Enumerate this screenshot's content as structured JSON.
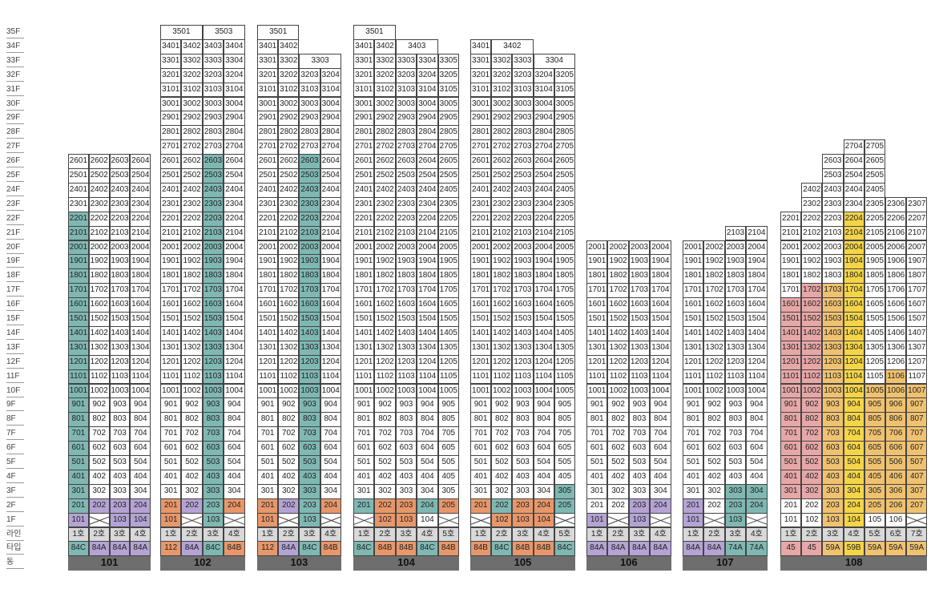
{
  "labels": {
    "line": "라인",
    "type": "타입",
    "building": "동"
  },
  "colors": {
    "teal": "#7fb8b3",
    "purple": "#b4a3d4",
    "orange": "#e8976a",
    "tan": "#f0c270",
    "yellow": "#f5d547",
    "pink": "#e7a7a7",
    "gray": "#d9d9d9",
    "white": "#ffffff"
  },
  "buildings": [
    {
      "name": "101",
      "lines": 4,
      "top": 26,
      "lowMax": 4,
      "line_labels": [
        "1호",
        "2호",
        "3호",
        "4호"
      ],
      "types": [
        "84C",
        "84A",
        "84A",
        "84A"
      ],
      "type_colors": [
        "teal",
        "purple",
        "purple",
        "purple"
      ],
      "tops": [],
      "f2": [
        [
          "201",
          "teal"
        ],
        [
          "202",
          "purple"
        ],
        [
          "203",
          "purple"
        ],
        [
          "204",
          "purple"
        ]
      ],
      "f1": [
        [
          "101",
          "purple"
        ],
        [
          "X",
          "white"
        ],
        [
          "103",
          "purple"
        ],
        [
          "104",
          "purple"
        ]
      ],
      "f3": [
        [
          "301",
          "teal"
        ],
        [
          "302",
          "white"
        ],
        [
          "303",
          "white"
        ],
        [
          "304",
          "white"
        ]
      ],
      "col": [
        0
      ],
      "colFrom": 3,
      "colTo": 26,
      "colLow": [
        0
      ],
      "colLowFrom": 3,
      "colLowTo": 22
    },
    {
      "name": "102",
      "lines": 4,
      "top": 35,
      "line_labels": [
        "1호",
        "2호",
        "3호",
        "4호"
      ],
      "types": [
        "112",
        "84A",
        "84C",
        "84B"
      ],
      "type_colors": [
        "orange",
        "purple",
        "teal",
        "orange"
      ],
      "tops": [
        {
          "f": 35,
          "cells": [
            [
              "3501",
              2
            ],
            [
              "3503",
              2
            ]
          ]
        }
      ],
      "f2": [
        [
          "201",
          "orange"
        ],
        [
          "202",
          "purple"
        ],
        [
          "203",
          "teal"
        ],
        [
          "204",
          "orange"
        ]
      ],
      "f1": [
        [
          "101",
          "orange"
        ],
        [
          "X",
          "white"
        ],
        [
          "103",
          "teal"
        ],
        [
          "X",
          "white"
        ]
      ],
      "col": [
        2
      ],
      "colFrom": 3,
      "colTo": 26
    },
    {
      "name": "103",
      "lines": 4,
      "top": 35,
      "line_labels": [
        "1호",
        "2호",
        "3호",
        "4호"
      ],
      "types": [
        "112",
        "84A",
        "84C",
        "84B"
      ],
      "type_colors": [
        "orange",
        "purple",
        "teal",
        "orange"
      ],
      "tops": [
        {
          "f": 35,
          "cells": [
            [
              "3501",
              2
            ]
          ]
        },
        {
          "f": 34,
          "cells": [
            [
              "3401",
              1
            ],
            [
              "3402",
              1
            ]
          ]
        },
        {
          "f": 33,
          "cells": [
            [
              "3301",
              1
            ],
            [
              "3302",
              1
            ],
            [
              "3303",
              2
            ]
          ]
        }
      ],
      "f2": [
        [
          "201",
          "orange"
        ],
        [
          "202",
          "purple"
        ],
        [
          "203",
          "teal"
        ],
        [
          "204",
          "orange"
        ]
      ],
      "f1": [
        [
          "101",
          "orange"
        ],
        [
          "X",
          "white"
        ],
        [
          "103",
          "teal"
        ],
        [
          "X",
          "white"
        ]
      ],
      "col": [
        2
      ],
      "colFrom": 3,
      "colTo": 26
    },
    {
      "name": "104",
      "lines": 5,
      "top": 35,
      "line_labels": [
        "1호",
        "2호",
        "3호",
        "4호",
        "5호"
      ],
      "types": [
        "84C",
        "84B",
        "84B",
        "84C",
        "84B"
      ],
      "type_colors": [
        "teal",
        "orange",
        "orange",
        "teal",
        "orange"
      ],
      "tops": [
        {
          "f": 35,
          "cells": [
            [
              "3501",
              2
            ]
          ]
        },
        {
          "f": 34,
          "cells": [
            [
              "3401",
              1
            ],
            [
              "3402",
              1
            ],
            [
              "3403",
              2
            ]
          ]
        }
      ],
      "f2": [
        [
          "201",
          "teal"
        ],
        [
          "202",
          "orange"
        ],
        [
          "203",
          "orange"
        ],
        [
          "204",
          "teal"
        ],
        [
          "205",
          "orange"
        ]
      ],
      "f1": [
        [
          "X",
          "white"
        ],
        [
          "102",
          "orange"
        ],
        [
          "103",
          "orange"
        ],
        [
          "104",
          "white"
        ],
        [
          "X",
          "white"
        ]
      ],
      "col": [],
      "colFrom": 0,
      "colTo": 0
    },
    {
      "name": "105",
      "lines": 5,
      "top": 34,
      "line_labels": [
        "1호",
        "2호",
        "3호",
        "4호",
        "5호"
      ],
      "types": [
        "84B",
        "84C",
        "84B",
        "84B",
        "84C"
      ],
      "type_colors": [
        "orange",
        "teal",
        "orange",
        "orange",
        "teal"
      ],
      "tops": [
        {
          "f": 34,
          "cells": [
            [
              "3401",
              1
            ],
            [
              "3402",
              2
            ]
          ]
        },
        {
          "f": 33,
          "cells": [
            [
              "3301",
              1
            ],
            [
              "3302",
              1
            ],
            [
              "3303",
              1
            ],
            [
              "3304",
              2
            ]
          ]
        }
      ],
      "f2": [
        [
          "201",
          "orange"
        ],
        [
          "202",
          "teal"
        ],
        [
          "203",
          "orange"
        ],
        [
          "204",
          "orange"
        ],
        [
          "205",
          "teal"
        ]
      ],
      "f1": [
        [
          "X",
          "white"
        ],
        [
          "102",
          "orange"
        ],
        [
          "103",
          "orange"
        ],
        [
          "104",
          "orange"
        ],
        [
          "X",
          "white"
        ]
      ],
      "f3": [
        [
          "301",
          "white"
        ],
        [
          "302",
          "white"
        ],
        [
          "303",
          "white"
        ],
        [
          "304",
          "white"
        ],
        [
          "305",
          "teal"
        ]
      ],
      "col": [],
      "colFrom": 0,
      "colTo": 0
    },
    {
      "name": "106",
      "lines": 4,
      "top": 20,
      "line_labels": [
        "1호",
        "2호",
        "3호",
        "4호"
      ],
      "types": [
        "84A",
        "84A",
        "84A",
        "84A"
      ],
      "type_colors": [
        "purple",
        "purple",
        "purple",
        "purple"
      ],
      "tops": [],
      "f2": [
        [
          "201",
          "white"
        ],
        [
          "202",
          "white"
        ],
        [
          "203",
          "purple"
        ],
        [
          "204",
          "purple"
        ]
      ],
      "f1": [
        [
          "101",
          "purple"
        ],
        [
          "X",
          "white"
        ],
        [
          "103",
          "purple"
        ],
        [
          "X",
          "white"
        ]
      ],
      "col": [],
      "colFrom": 0,
      "colTo": 0
    },
    {
      "name": "107",
      "lines": 4,
      "top": 21,
      "line_labels": [
        "1호",
        "2호",
        "3호",
        "4호"
      ],
      "types": [
        "84A",
        "84A",
        "74A",
        "74A"
      ],
      "type_colors": [
        "purple",
        "purple",
        "teal",
        "teal"
      ],
      "tops": [
        {
          "f": 21,
          "cells": [
            [
              "",
              2
            ],
            [
              "2103",
              1
            ],
            [
              "2104",
              1
            ]
          ]
        }
      ],
      "f2": [
        [
          "201",
          "purple"
        ],
        [
          "202",
          "white"
        ],
        [
          "203",
          "teal"
        ],
        [
          "204",
          "teal"
        ]
      ],
      "f1": [
        [
          "101",
          "purple"
        ],
        [
          "X",
          "white"
        ],
        [
          "103",
          "teal"
        ],
        [
          "X",
          "white"
        ]
      ],
      "f3": [
        [
          "301",
          "white"
        ],
        [
          "302",
          "white"
        ],
        [
          "303",
          "teal"
        ],
        [
          "304",
          "teal"
        ]
      ],
      "col": [],
      "colFrom": 0,
      "colTo": 0
    },
    {
      "name": "108",
      "lines": 7,
      "top": 27,
      "line_labels": [
        "1호",
        "2호",
        "3호",
        "4호",
        "5호",
        "6호",
        "7호"
      ],
      "types": [
        "45",
        "45",
        "59A",
        "59B",
        "59A",
        "59A",
        "59A"
      ],
      "type_colors": [
        "pink",
        "pink",
        "tan",
        "yellow",
        "tan",
        "tan",
        "tan"
      ],
      "tops": [
        {
          "f": 27,
          "cells": [
            [
              "",
              3
            ],
            [
              "2704",
              1
            ],
            [
              "2705",
              1
            ],
            [
              "",
              2
            ]
          ]
        },
        {
          "f": 26,
          "cells": [
            [
              "",
              2
            ],
            [
              "2603",
              1
            ],
            [
              "2604",
              1
            ],
            [
              "2605",
              1
            ],
            [
              "",
              2
            ]
          ]
        },
        {
          "f": 25,
          "cells": [
            [
              "",
              2
            ],
            [
              "2503",
              1
            ],
            [
              "2504",
              1
            ],
            [
              "2505",
              1
            ],
            [
              "",
              2
            ]
          ]
        },
        {
          "f": 24,
          "cells": [
            [
              "",
              1
            ],
            [
              "2402",
              1
            ],
            [
              "2403",
              1
            ],
            [
              "2404",
              1
            ],
            [
              "2405",
              1
            ],
            [
              "",
              2
            ]
          ]
        },
        {
          "f": 23,
          "cells": [
            [
              "",
              1
            ],
            [
              "2302",
              1
            ],
            [
              "2303",
              1
            ],
            [
              "2304",
              1
            ],
            [
              "2305",
              1
            ],
            [
              "2306",
              1
            ],
            [
              "2307",
              1
            ]
          ]
        }
      ],
      "f2": [
        [
          "201",
          "white"
        ],
        [
          "202",
          "white"
        ],
        [
          "203",
          "tan"
        ],
        [
          "204",
          "yellow"
        ],
        [
          "205",
          "tan"
        ],
        [
          "206",
          "tan"
        ],
        [
          "207",
          "tan"
        ]
      ],
      "f1": [
        [
          "101",
          "white"
        ],
        [
          "102",
          "white"
        ],
        [
          "103",
          "tan"
        ],
        [
          "104",
          "yellow"
        ],
        [
          "105",
          "white"
        ],
        [
          "106",
          "white"
        ],
        [
          "X",
          "white"
        ]
      ],
      "col": [],
      "colFrom": 0,
      "colTo": 0
    }
  ],
  "floors": [
    "35F",
    "34F",
    "33F",
    "32F",
    "31F",
    "30F",
    "29F",
    "28F",
    "27F",
    "26F",
    "25F",
    "24F",
    "23F",
    "22F",
    "21F",
    "20F",
    "19F",
    "18F",
    "17F",
    "16F",
    "15F",
    "14F",
    "13F",
    "12F",
    "11F",
    "10F",
    "9F",
    "8F",
    "7F",
    "6F",
    "5F",
    "4F",
    "3F",
    "2F",
    "1F"
  ]
}
